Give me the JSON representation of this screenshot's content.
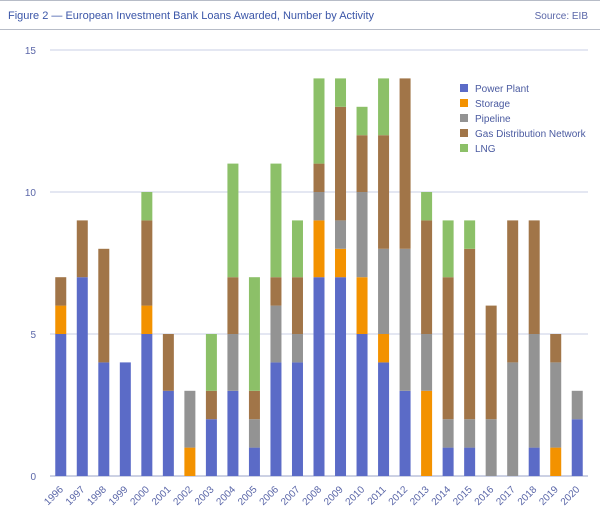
{
  "header": {
    "title": "Figure 2 — European Investment Bank Loans Awarded, Number by Activity",
    "source": "Source: EIB"
  },
  "chart_data": {
    "type": "bar",
    "stacked": true,
    "categories": [
      "1996",
      "1997",
      "1998",
      "1999",
      "2000",
      "2001",
      "2002",
      "2003",
      "2004",
      "2005",
      "2006",
      "2007",
      "2008",
      "2009",
      "2010",
      "2011",
      "2012",
      "2013",
      "2014",
      "2015",
      "2016",
      "2017",
      "2018",
      "2019",
      "2020"
    ],
    "series": [
      {
        "name": "Power Plant",
        "color": "#5b6bc7",
        "values": [
          5,
          7,
          4,
          4,
          5,
          3,
          0,
          2,
          3,
          1,
          4,
          4,
          7,
          7,
          5,
          4,
          3,
          0,
          1,
          1,
          0,
          0,
          1,
          0,
          2
        ]
      },
      {
        "name": "Storage",
        "color": "#f39200",
        "values": [
          1,
          0,
          0,
          0,
          1,
          0,
          1,
          0,
          0,
          0,
          0,
          0,
          2,
          1,
          2,
          1,
          0,
          3,
          0,
          0,
          0,
          0,
          0,
          1,
          0
        ]
      },
      {
        "name": "Pipeline",
        "color": "#939393",
        "values": [
          0,
          0,
          0,
          0,
          0,
          0,
          2,
          0,
          2,
          1,
          2,
          1,
          1,
          1,
          3,
          3,
          5,
          2,
          1,
          1,
          2,
          4,
          4,
          3,
          1
        ]
      },
      {
        "name": "Gas Distribution Network",
        "color": "#a17548",
        "values": [
          1,
          2,
          4,
          0,
          3,
          2,
          0,
          1,
          2,
          1,
          1,
          2,
          1,
          4,
          2,
          4,
          6,
          4,
          5,
          6,
          4,
          5,
          4,
          1,
          0
        ]
      },
      {
        "name": "LNG",
        "color": "#8cc068",
        "values": [
          0,
          0,
          0,
          0,
          1,
          0,
          0,
          2,
          4,
          4,
          4,
          2,
          3,
          1,
          1,
          2,
          0,
          1,
          2,
          1,
          0,
          0,
          0,
          0,
          0
        ]
      }
    ],
    "yticks": [
      0,
      5,
      10,
      15
    ],
    "ylim": [
      0,
      15
    ],
    "grid": true,
    "legend_position": "top-right"
  }
}
